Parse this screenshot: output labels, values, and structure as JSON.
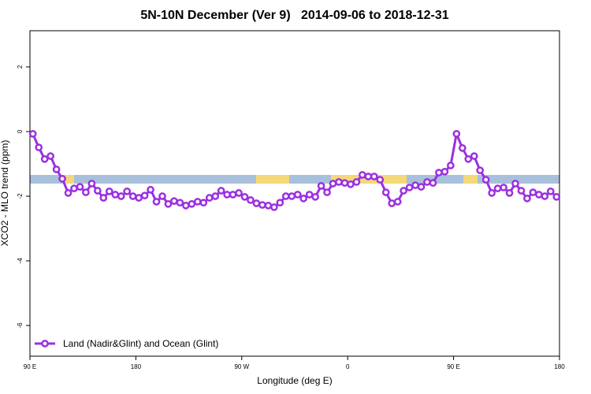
{
  "chart_data": {
    "type": "line",
    "title": "5N-10N December (Ver 9)   2014-09-06 to 2018-12-31",
    "xlabel": "Longitude (deg E)",
    "ylabel": "XCO2 - MLO trend (ppm)",
    "xlim": [
      90,
      540
    ],
    "ylim": [
      -6.95,
      3.12
    ],
    "xticks": [
      {
        "value": 90,
        "label": "90 E"
      },
      180,
      {
        "value": 270,
        "label": "90 W"
      },
      {
        "value": 360,
        "label": "0"
      },
      {
        "value": 450,
        "label": "90 E"
      },
      {
        "value": 540,
        "label": "180"
      }
    ],
    "yticks": [
      2,
      0,
      -2,
      -4,
      -6
    ],
    "legend": "bottomleft",
    "x": [
      92.5,
      97.5,
      102.5,
      107.5,
      112.5,
      117.5,
      122.5,
      127.5,
      132.5,
      137.5,
      142.5,
      147.5,
      152.5,
      157.5,
      162.5,
      167.5,
      172.5,
      177.5,
      182.5,
      187.5,
      192.5,
      197.5,
      202.5,
      207.5,
      212.5,
      217.5,
      222.5,
      227.5,
      232.5,
      237.5,
      242.5,
      247.5,
      252.5,
      257.5,
      262.5,
      267.5,
      272.5,
      277.5,
      282.5,
      287.5,
      292.5,
      297.5,
      302.5,
      307.5,
      312.5,
      317.5,
      322.5,
      327.5,
      332.5,
      337.5,
      342.5,
      347.5,
      352.5,
      357.5,
      362.5,
      367.5,
      372.5,
      377.5,
      382.5,
      387.5,
      392.5,
      397.5,
      402.5,
      407.5,
      412.5,
      417.5,
      422.5,
      427.5,
      432.5,
      437.5,
      442.5,
      447.5,
      452.5,
      457.5,
      462.5,
      467.5,
      472.5,
      477.5,
      482.5,
      487.5,
      492.5,
      497.5,
      502.5,
      507.5,
      512.5,
      517.5,
      522.5,
      527.5,
      532.5,
      537.5
    ],
    "series": [
      {
        "name": "Land (Nadir&Glint) and Ocean (Glint)",
        "color": "#9b30e0",
        "values": [
          -0.07,
          -0.49,
          -0.85,
          -0.76,
          -1.17,
          -1.46,
          -1.9,
          -1.76,
          -1.71,
          -1.88,
          -1.61,
          -1.83,
          -2.05,
          -1.85,
          -1.95,
          -2.0,
          -1.85,
          -2.0,
          -2.05,
          -1.98,
          -1.8,
          -2.17,
          -2.0,
          -2.24,
          -2.15,
          -2.2,
          -2.29,
          -2.24,
          -2.17,
          -2.2,
          -2.05,
          -2.0,
          -1.83,
          -1.95,
          -1.95,
          -1.9,
          -2.02,
          -2.12,
          -2.22,
          -2.27,
          -2.29,
          -2.34,
          -2.2,
          -2.0,
          -2.0,
          -1.95,
          -2.07,
          -1.95,
          -2.02,
          -1.68,
          -1.88,
          -1.61,
          -1.56,
          -1.59,
          -1.63,
          -1.56,
          -1.34,
          -1.39,
          -1.39,
          -1.49,
          -1.88,
          -2.22,
          -2.17,
          -1.83,
          -1.73,
          -1.66,
          -1.71,
          -1.56,
          -1.59,
          -1.27,
          -1.24,
          -1.05,
          -0.07,
          -0.51,
          -0.85,
          -0.76,
          -1.2,
          -1.49,
          -1.9,
          -1.76,
          -1.73,
          -1.9,
          -1.61,
          -1.83,
          -2.07,
          -1.88,
          -1.95,
          -2.0,
          -1.85,
          -2.02
        ]
      }
    ]
  }
}
